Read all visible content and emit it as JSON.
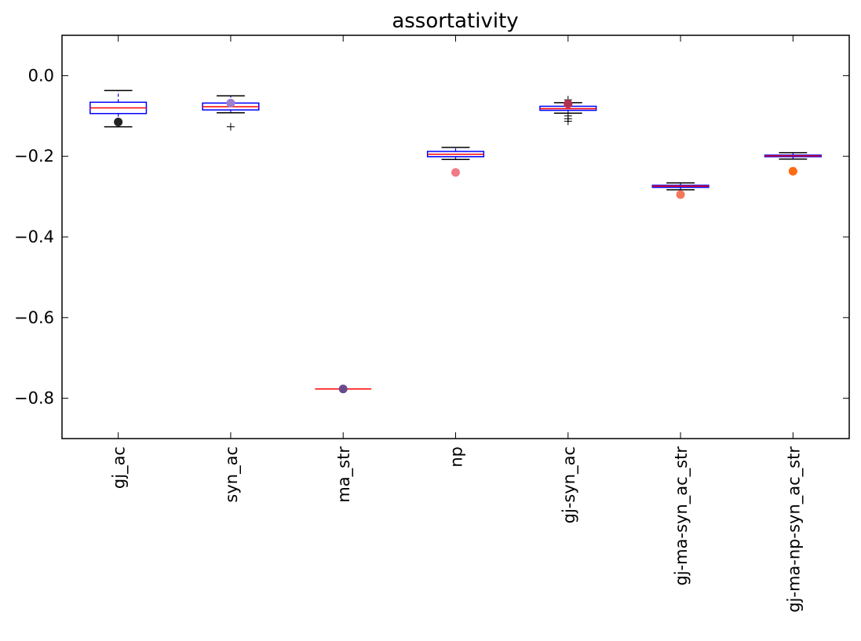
{
  "chart_data": {
    "type": "box",
    "title": "assortativity",
    "xlabel": "",
    "ylabel": "",
    "ylim": [
      -0.9,
      0.1
    ],
    "yticks": [
      0.0,
      -0.2,
      -0.4,
      -0.6,
      -0.8
    ],
    "ytick_labels": [
      "0.0",
      "−0.2",
      "−0.4",
      "−0.6",
      "−0.8"
    ],
    "categories": [
      "gj_ac",
      "syn_ac",
      "ma_str",
      "np",
      "gj-syn_ac",
      "gj-ma-syn_ac_str",
      "gj-ma-np-syn_ac_str"
    ],
    "boxes": [
      {
        "whisker_low": -0.127,
        "q1": -0.094,
        "median": -0.08,
        "q3": -0.066,
        "whisker_high": -0.037,
        "outliers": [],
        "observed": -0.115,
        "observed_color": "#222222"
      },
      {
        "whisker_low": -0.092,
        "q1": -0.085,
        "median": -0.077,
        "q3": -0.068,
        "whisker_high": -0.05,
        "outliers": [
          -0.127
        ],
        "observed": -0.068,
        "observed_color": "#9b7fd0"
      },
      {
        "whisker_low": -0.777,
        "q1": -0.777,
        "median": -0.777,
        "q3": -0.777,
        "whisker_high": -0.777,
        "outliers": [],
        "observed": -0.777,
        "observed_color": "#6a4a8c"
      },
      {
        "whisker_low": -0.208,
        "q1": -0.201,
        "median": -0.195,
        "q3": -0.188,
        "whisker_high": -0.178,
        "outliers": [],
        "observed": -0.24,
        "observed_color": "#f07b88"
      },
      {
        "whisker_low": -0.093,
        "q1": -0.086,
        "median": -0.082,
        "q3": -0.076,
        "whisker_high": -0.067,
        "outliers": [
          -0.06,
          -0.1,
          -0.107,
          -0.113
        ],
        "observed": -0.07,
        "observed_color": "#b03050"
      },
      {
        "whisker_low": -0.283,
        "q1": -0.277,
        "median": -0.274,
        "q3": -0.272,
        "whisker_high": -0.266,
        "outliers": [],
        "observed": -0.295,
        "observed_color": "#f4775a"
      },
      {
        "whisker_low": -0.207,
        "q1": -0.201,
        "median": -0.199,
        "q3": -0.197,
        "whisker_high": -0.191,
        "outliers": [],
        "observed": -0.237,
        "observed_color": "#ff6a10"
      }
    ],
    "box_color": "#0000ff",
    "median_color": "#ff0000",
    "whisker_color": "#000000",
    "grid": false
  }
}
